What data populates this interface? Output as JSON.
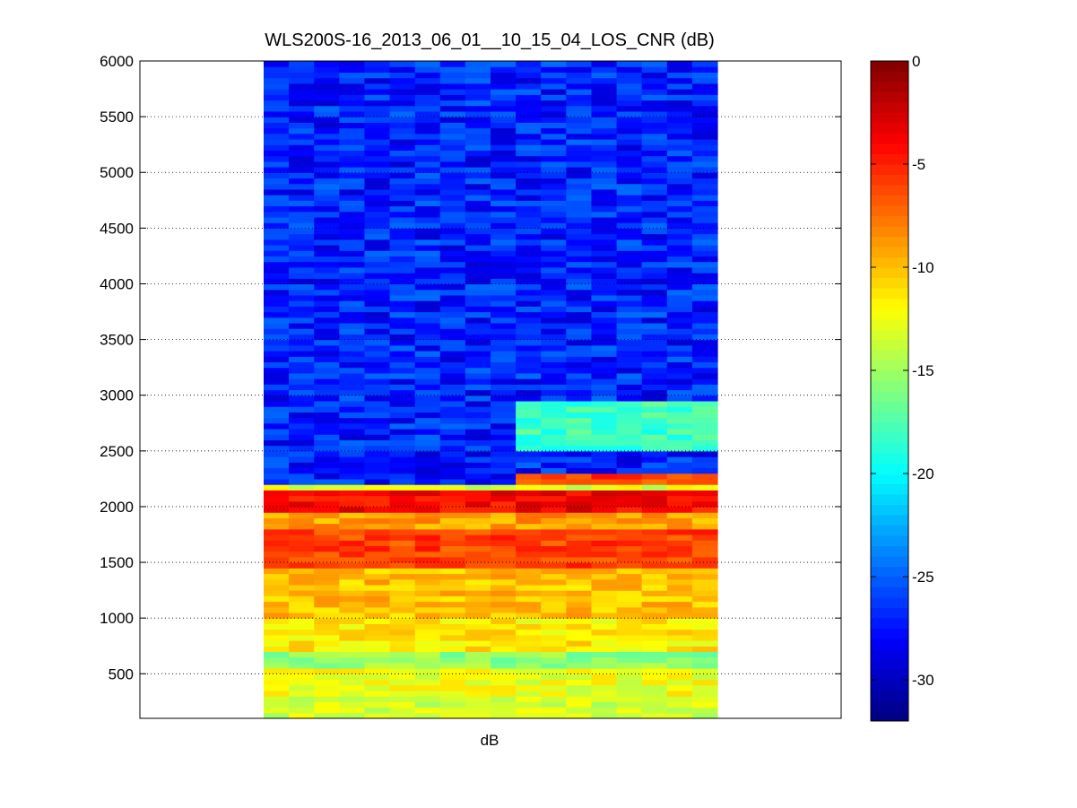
{
  "chart_data": {
    "type": "heatmap",
    "title": "WLS200S-16_2013_06_01__10_15_04_LOS_CNR (dB)",
    "xlabel": "dB",
    "ylabel": "",
    "ylim": [
      100,
      6000
    ],
    "yticks": [
      500,
      1000,
      1500,
      2000,
      2500,
      3000,
      3500,
      4000,
      4500,
      5000,
      5500,
      6000
    ],
    "grid": "horizontal dotted",
    "colormap": "jet",
    "colorbar": {
      "range": [
        -32,
        0
      ],
      "ticks": [
        -30,
        -25,
        -20,
        -15,
        -10,
        -5,
        0
      ],
      "tick_labels": [
        "-30",
        "-25",
        "-20",
        "-15",
        "-10",
        "-5",
        "0"
      ]
    },
    "columns": 18,
    "band_summary": [
      {
        "range_m": [
          100,
          300
        ],
        "cnr_db": -13.5
      },
      {
        "range_m": [
          300,
          550
        ],
        "cnr_db": -12.5
      },
      {
        "range_m": [
          550,
          700
        ],
        "cnr_db": -15.5
      },
      {
        "range_m": [
          700,
          1000
        ],
        "cnr_db": -11.5
      },
      {
        "range_m": [
          1000,
          1450
        ],
        "cnr_db": -10
      },
      {
        "range_m": [
          1450,
          1800
        ],
        "cnr_db": -6
      },
      {
        "range_m": [
          1800,
          1950
        ],
        "cnr_db": -9
      },
      {
        "range_m": [
          1950,
          2150
        ],
        "cnr_db": -4
      },
      {
        "range_m": [
          2150,
          2200
        ],
        "cnr_db": -13
      },
      {
        "range_m": [
          2200,
          6000
        ],
        "cnr_db": -27
      }
    ],
    "features": [
      {
        "range_m": [
          2200,
          2300
        ],
        "columns": [
          10,
          17
        ],
        "cnr_db": -6
      },
      {
        "range_m": [
          2500,
          2950
        ],
        "columns": [
          10,
          17
        ],
        "cnr_db": -18
      }
    ]
  }
}
